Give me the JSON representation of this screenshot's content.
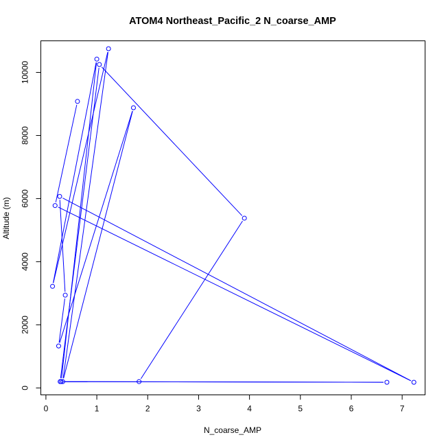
{
  "chart_data": {
    "type": "line",
    "title": "ATOM4 Northeast_Pacific_2 N_coarse_AMP",
    "xlabel": "N_coarse_AMP",
    "ylabel": "Altitude (m)",
    "xlim": [
      -0.1,
      7.45
    ],
    "ylim": [
      -220,
      11000
    ],
    "x_ticks": [
      0,
      1,
      2,
      3,
      4,
      5,
      6,
      7
    ],
    "y_ticks": [
      0,
      2000,
      4000,
      6000,
      8000,
      10000
    ],
    "grid": false,
    "legend": "none",
    "colors": {
      "series": "#0000ff",
      "axis": "#000000"
    },
    "series": [
      {
        "x": [
          1.83,
          3.9,
          1.05,
          0.28,
          6.7,
          0.3,
          1.0,
          0.13,
          1.23,
          0.33,
          1.72,
          0.25,
          0.38,
          0.27,
          7.23,
          0.18,
          0.62
        ],
        "y": [
          200,
          5380,
          10250,
          200,
          180,
          200,
          10420,
          3220,
          10750,
          200,
          8880,
          1330,
          2940,
          6070,
          180,
          5780,
          9080
        ]
      }
    ]
  }
}
